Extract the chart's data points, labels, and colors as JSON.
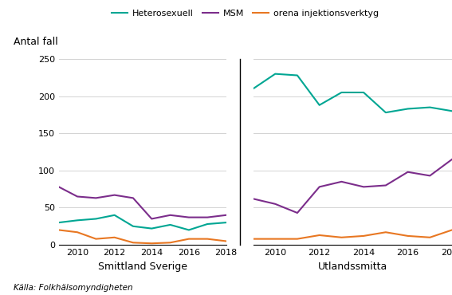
{
  "years": [
    2009,
    2010,
    2011,
    2012,
    2013,
    2014,
    2015,
    2016,
    2017,
    2018
  ],
  "sverige": {
    "heterosexuell": [
      30,
      33,
      35,
      40,
      25,
      22,
      27,
      20,
      28,
      30
    ],
    "msm": [
      78,
      65,
      63,
      67,
      63,
      35,
      40,
      37,
      37,
      40
    ],
    "orena": [
      20,
      17,
      8,
      10,
      3,
      2,
      3,
      8,
      8,
      5
    ]
  },
  "utland": {
    "heterosexuell": [
      210,
      230,
      228,
      188,
      205,
      205,
      178,
      183,
      185,
      180
    ],
    "msm": [
      62,
      55,
      43,
      78,
      85,
      78,
      80,
      98,
      93,
      115
    ],
    "orena": [
      8,
      8,
      8,
      13,
      10,
      12,
      17,
      12,
      10,
      20
    ]
  },
  "colors": {
    "heterosexuell": "#00A693",
    "msm": "#7B2D8B",
    "orena": "#E87722"
  },
  "ylim": [
    0,
    250
  ],
  "yticks": [
    0,
    50,
    100,
    150,
    200,
    250
  ],
  "ylabel": "Antal fall",
  "label_sverige": "Smittland Sverige",
  "label_utland": "Utlandssmitta",
  "legend_labels": [
    "Heterosexuell",
    "MSM",
    "orena injektionsverktyg"
  ],
  "source": "Källa: Folkhälsomyndigheten"
}
